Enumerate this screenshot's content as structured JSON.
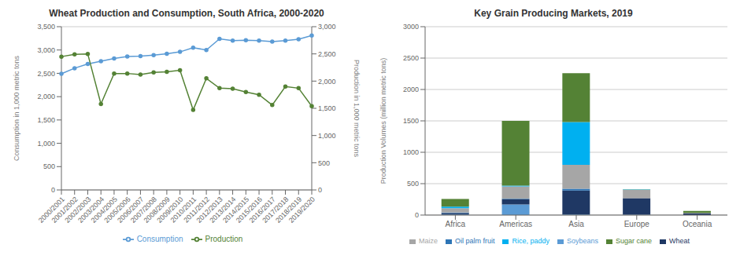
{
  "chart_data": [
    {
      "type": "line",
      "title": "Wheat Production and Consumption, South Africa, 2000-2020",
      "categories": [
        "2000/2001",
        "2001/2002",
        "2002/2003",
        "2003/2004",
        "2004/2005",
        "2005/2006",
        "2006/2007",
        "2007/2008",
        "2008/2009",
        "2009/2010",
        "2010/2011",
        "2011/2012",
        "2012/2013",
        "2013/2014",
        "2014/2015",
        "2015/2016",
        "2016/2017",
        "2017/2018",
        "2018/2019",
        "2019/2020"
      ],
      "series": [
        {
          "name": "Consumption",
          "color": "#5b9bd5",
          "marker": "circle",
          "values": [
            2490,
            2610,
            2700,
            2760,
            2820,
            2860,
            2870,
            2890,
            2920,
            2960,
            3050,
            3000,
            3240,
            3200,
            3210,
            3200,
            3180,
            3200,
            3230,
            3310
          ]
        },
        {
          "name": "Production",
          "color": "#548235",
          "marker": "circle",
          "axis": "y2",
          "values": [
            2450,
            2490,
            2500,
            1580,
            2140,
            2140,
            2120,
            2160,
            2170,
            2200,
            1470,
            2050,
            1870,
            1860,
            1800,
            1750,
            1560,
            1900,
            1870,
            1540
          ]
        }
      ],
      "ylabel": "Consumption in 1,000 metric tons",
      "y2label": "Production in 1,000 metric tons",
      "ylim": [
        0,
        3500
      ],
      "yticks": [
        0,
        500,
        {
          "value": 1000,
          "label": "1,000"
        },
        {
          "value": 1500,
          "label": "1,500"
        },
        {
          "value": 2000,
          "label": "2,000"
        },
        {
          "value": 2500,
          "label": "2,500"
        },
        {
          "value": 3000,
          "label": "3,000"
        },
        {
          "value": 3500,
          "label": "3,500"
        }
      ],
      "y2lim": [
        0,
        3000
      ],
      "y2ticks": [
        0,
        500,
        {
          "value": 1000,
          "label": "1,000"
        },
        {
          "value": 1500,
          "label": "1,500"
        },
        {
          "value": 2000,
          "label": "2,000"
        },
        {
          "value": 2500,
          "label": "2,500"
        },
        {
          "value": 3000,
          "label": "3,000"
        }
      ],
      "grid": true,
      "legend": "bottom"
    },
    {
      "type": "bar",
      "title": "Key Grain Producing Markets, 2019",
      "categories": [
        "Africa",
        "Americas",
        "Asia",
        "Europe",
        "Oceania"
      ],
      "series": [
        {
          "name": "Soybeans",
          "color": "#5b9bd5",
          "values": [
            10,
            170,
            10,
            5,
            0
          ]
        },
        {
          "name": "Wheat",
          "color": "#1f3864",
          "values": [
            20,
            80,
            380,
            265,
            25
          ]
        },
        {
          "name": "Oil palm fruit",
          "color": "#2e75b6",
          "values": [
            10,
            10,
            30,
            0,
            0
          ]
        },
        {
          "name": "Maize",
          "color": "#a6a6a6",
          "values": [
            70,
            195,
            380,
            130,
            10
          ]
        },
        {
          "name": "Rice, paddy",
          "color": "#00b0f0",
          "values": [
            25,
            15,
            680,
            5,
            0
          ]
        },
        {
          "name": "Sugar cane",
          "color": "#548235",
          "values": [
            120,
            1030,
            780,
            5,
            30
          ]
        }
      ],
      "ylabel": "Production Volumes (million metric tons)",
      "ylim": [
        0,
        3000
      ],
      "yticks": [
        0,
        500,
        1000,
        1500,
        2000,
        2500,
        3000
      ],
      "stacked": true,
      "grid": true,
      "legend": "bottom"
    }
  ]
}
